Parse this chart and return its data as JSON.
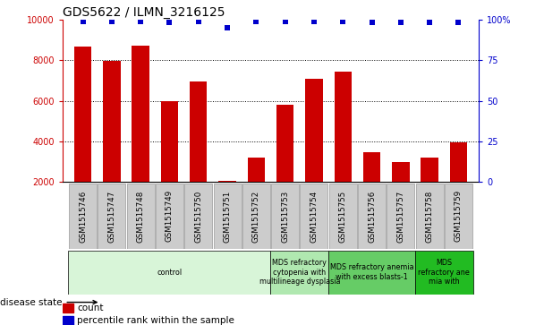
{
  "title": "GDS5622 / ILMN_3216125",
  "samples": [
    "GSM1515746",
    "GSM1515747",
    "GSM1515748",
    "GSM1515749",
    "GSM1515750",
    "GSM1515751",
    "GSM1515752",
    "GSM1515753",
    "GSM1515754",
    "GSM1515755",
    "GSM1515756",
    "GSM1515757",
    "GSM1515758",
    "GSM1515759"
  ],
  "counts": [
    8650,
    7950,
    8700,
    6000,
    6950,
    2050,
    3200,
    5800,
    7100,
    7450,
    3450,
    3000,
    3200,
    3950
  ],
  "percentile_ranks": [
    99,
    99,
    99,
    98,
    99,
    95,
    99,
    99,
    99,
    99,
    98,
    98,
    98,
    98
  ],
  "bar_color": "#cc0000",
  "dot_color": "#0000cc",
  "ylim_left": [
    2000,
    10000
  ],
  "ylim_right": [
    0,
    100
  ],
  "yticks_left": [
    2000,
    4000,
    6000,
    8000,
    10000
  ],
  "yticks_right": [
    0,
    25,
    50,
    75,
    100
  ],
  "yticklabels_right": [
    "0",
    "25",
    "50",
    "75",
    "100%"
  ],
  "grid_values": [
    4000,
    6000,
    8000
  ],
  "disease_groups": [
    {
      "label": "control",
      "start": 0,
      "end": 7,
      "color": "#d8f5d8"
    },
    {
      "label": "MDS refractory\ncytopenia with\nmultilineage dysplasia",
      "start": 7,
      "end": 9,
      "color": "#b0e8b0"
    },
    {
      "label": "MDS refractory anemia\nwith excess blasts-1",
      "start": 9,
      "end": 12,
      "color": "#66cc66"
    },
    {
      "label": "MDS\nrefractory ane\nmia with",
      "start": 12,
      "end": 14,
      "color": "#22bb22"
    }
  ],
  "disease_state_label": "disease state",
  "legend_items": [
    {
      "label": "count",
      "color": "#cc0000"
    },
    {
      "label": "percentile rank within the sample",
      "color": "#0000cc"
    }
  ],
  "title_fontsize": 10,
  "axis_label_color_left": "#cc0000",
  "axis_label_color_right": "#0000cc",
  "sample_box_color": "#cccccc",
  "sample_box_edge": "#999999"
}
